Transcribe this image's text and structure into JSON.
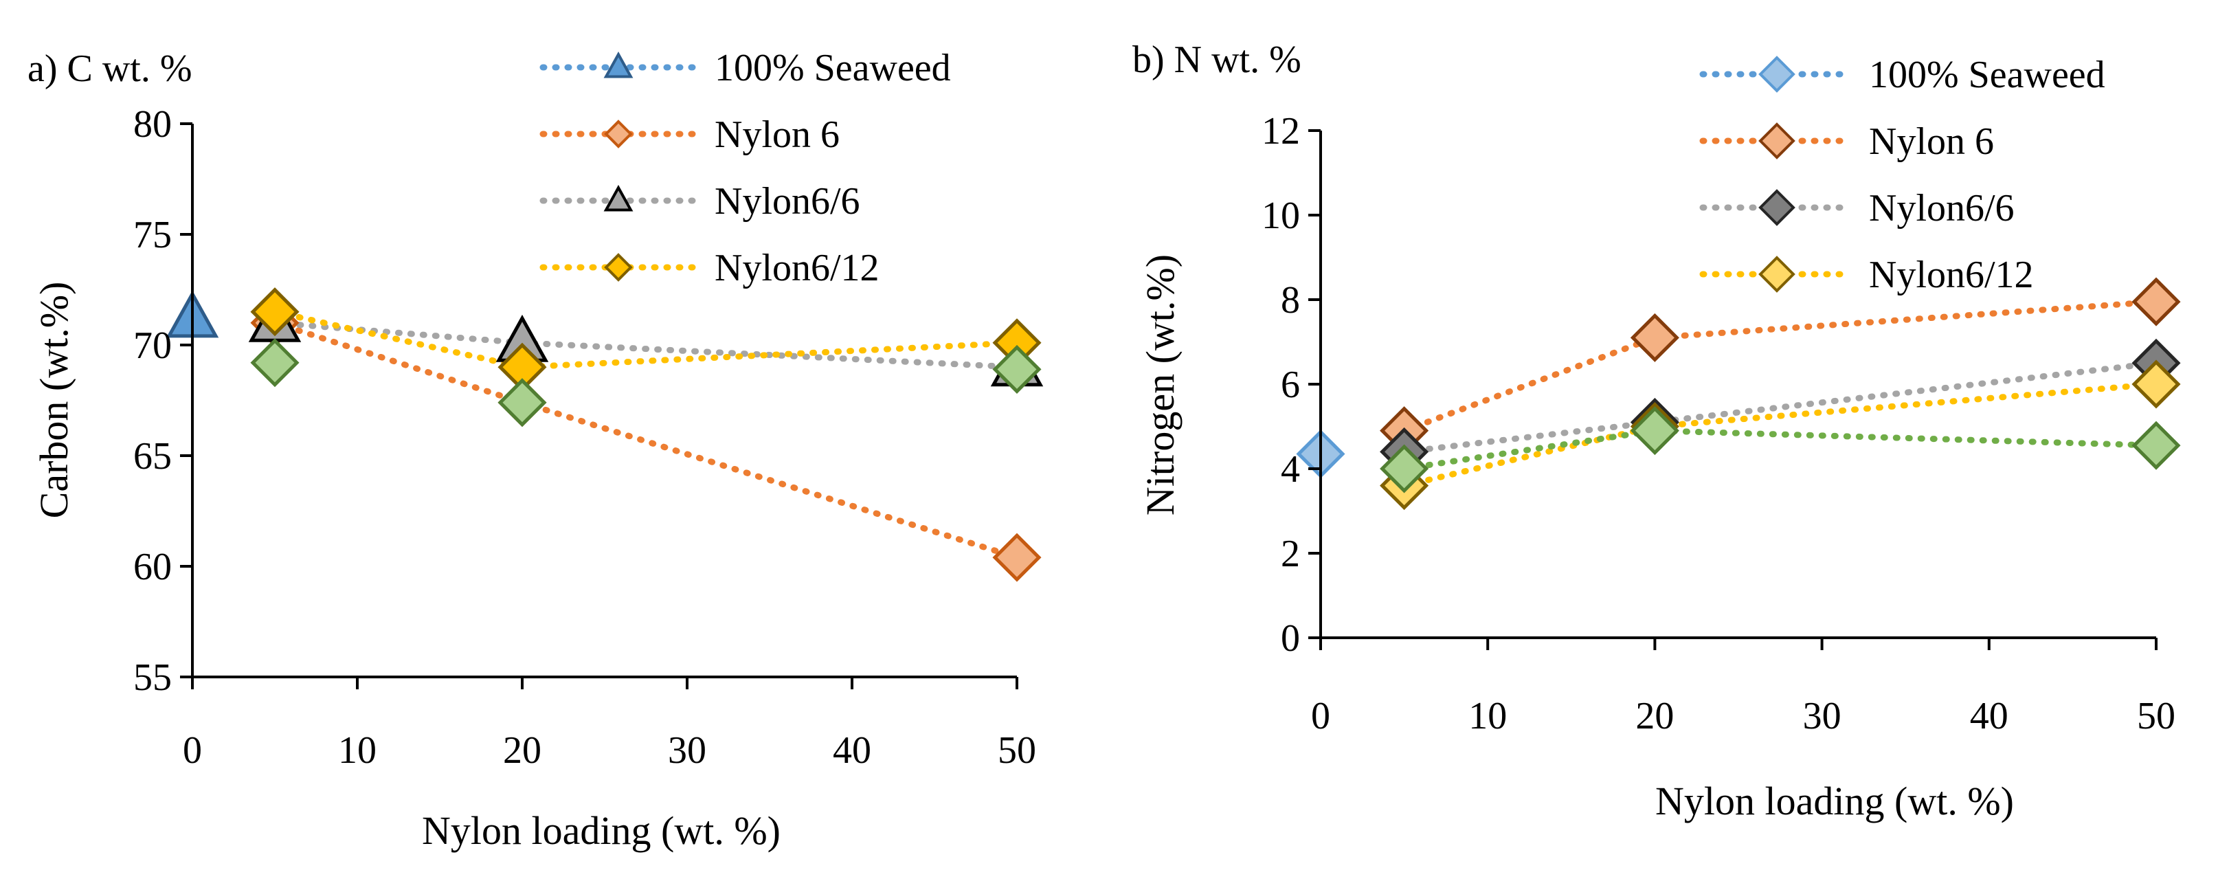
{
  "chart_data": [
    {
      "type": "line",
      "title": "a) C wt. %",
      "xlabel": "Nylon loading (wt. %)",
      "ylabel": "Carbon (wt.%)",
      "xlim": [
        0,
        50
      ],
      "ylim": [
        55,
        80
      ],
      "x_ticks": [
        "0",
        "10",
        "20",
        "30",
        "40",
        "50"
      ],
      "y_ticks": [
        "55",
        "60",
        "65",
        "70",
        "75",
        "80"
      ],
      "legend_position": "top-right",
      "series": [
        {
          "name": "100% Seaweed",
          "x": [
            0
          ],
          "y": [
            71.2
          ],
          "color": "#5B9BD5",
          "marker_fill": "#5B9BD5",
          "marker_edge": "#2E5C8A",
          "marker": "triangle",
          "show_in_legend": true
        },
        {
          "name": "Nylon 6",
          "x": [
            5,
            20,
            50
          ],
          "y": [
            71.0,
            67.4,
            60.4
          ],
          "color": "#ED7D31",
          "marker_fill": "#F4B183",
          "marker_edge": "#C55A11",
          "marker": "diamond",
          "show_in_legend": true
        },
        {
          "name": "Nylon6/6",
          "x": [
            5,
            20,
            50
          ],
          "y": [
            71.0,
            70.1,
            69.0
          ],
          "color": "#A5A5A5",
          "marker_fill": "#A5A5A5",
          "marker_edge": "#000000",
          "marker": "triangle",
          "show_in_legend": true
        },
        {
          "name": "Nylon6/12",
          "x": [
            5,
            20,
            50
          ],
          "y": [
            71.5,
            69.0,
            70.1
          ],
          "color": "#FFC000",
          "marker_fill": "#FFC000",
          "marker_edge": "#7F6000",
          "marker": "diamond",
          "show_in_legend": true
        },
        {
          "name": "",
          "x": [
            5,
            20,
            50
          ],
          "y": [
            69.2,
            67.4,
            68.9
          ],
          "color": "#70AD47",
          "marker_fill": "#A9D18E",
          "marker_edge": "#507E32",
          "marker": "diamond",
          "show_in_legend": false,
          "line": false
        }
      ]
    },
    {
      "type": "line",
      "title": "b) N wt. %",
      "xlabel": "Nylon loading (wt. %)",
      "ylabel": "Nitrogen (wt.%)",
      "xlim": [
        0,
        50
      ],
      "ylim": [
        0,
        12
      ],
      "x_ticks": [
        "0",
        "10",
        "20",
        "30",
        "40",
        "50"
      ],
      "y_ticks": [
        "0",
        "2",
        "4",
        "6",
        "8",
        "10",
        "12"
      ],
      "legend_position": "top-right",
      "series": [
        {
          "name": "100% Seaweed",
          "x": [
            0
          ],
          "y": [
            4.35
          ],
          "color": "#5B9BD5",
          "marker_fill": "#9DC3E6",
          "marker_edge": "#5B9BD5",
          "marker": "diamond",
          "show_in_legend": true
        },
        {
          "name": "Nylon 6",
          "x": [
            5,
            20,
            50
          ],
          "y": [
            4.9,
            7.1,
            7.95
          ],
          "color": "#ED7D31",
          "marker_fill": "#F4B183",
          "marker_edge": "#843C0C",
          "marker": "diamond",
          "show_in_legend": true
        },
        {
          "name": "Nylon6/6",
          "x": [
            5,
            20,
            50
          ],
          "y": [
            4.4,
            5.1,
            6.5
          ],
          "color": "#A5A5A5",
          "marker_fill": "#7F7F7F",
          "marker_edge": "#262626",
          "marker": "diamond",
          "show_in_legend": true
        },
        {
          "name": "Nylon6/12",
          "x": [
            5,
            20,
            50
          ],
          "y": [
            3.6,
            5.0,
            6.0
          ],
          "color": "#FFC000",
          "marker_fill": "#FFD966",
          "marker_edge": "#7F6000",
          "marker": "diamond",
          "show_in_legend": true
        },
        {
          "name": "",
          "x": [
            5,
            20,
            50
          ],
          "y": [
            4.0,
            4.9,
            4.55
          ],
          "color": "#70AD47",
          "marker_fill": "#A9D18E",
          "marker_edge": "#507E32",
          "marker": "diamond",
          "show_in_legend": false,
          "line": true
        }
      ]
    }
  ]
}
